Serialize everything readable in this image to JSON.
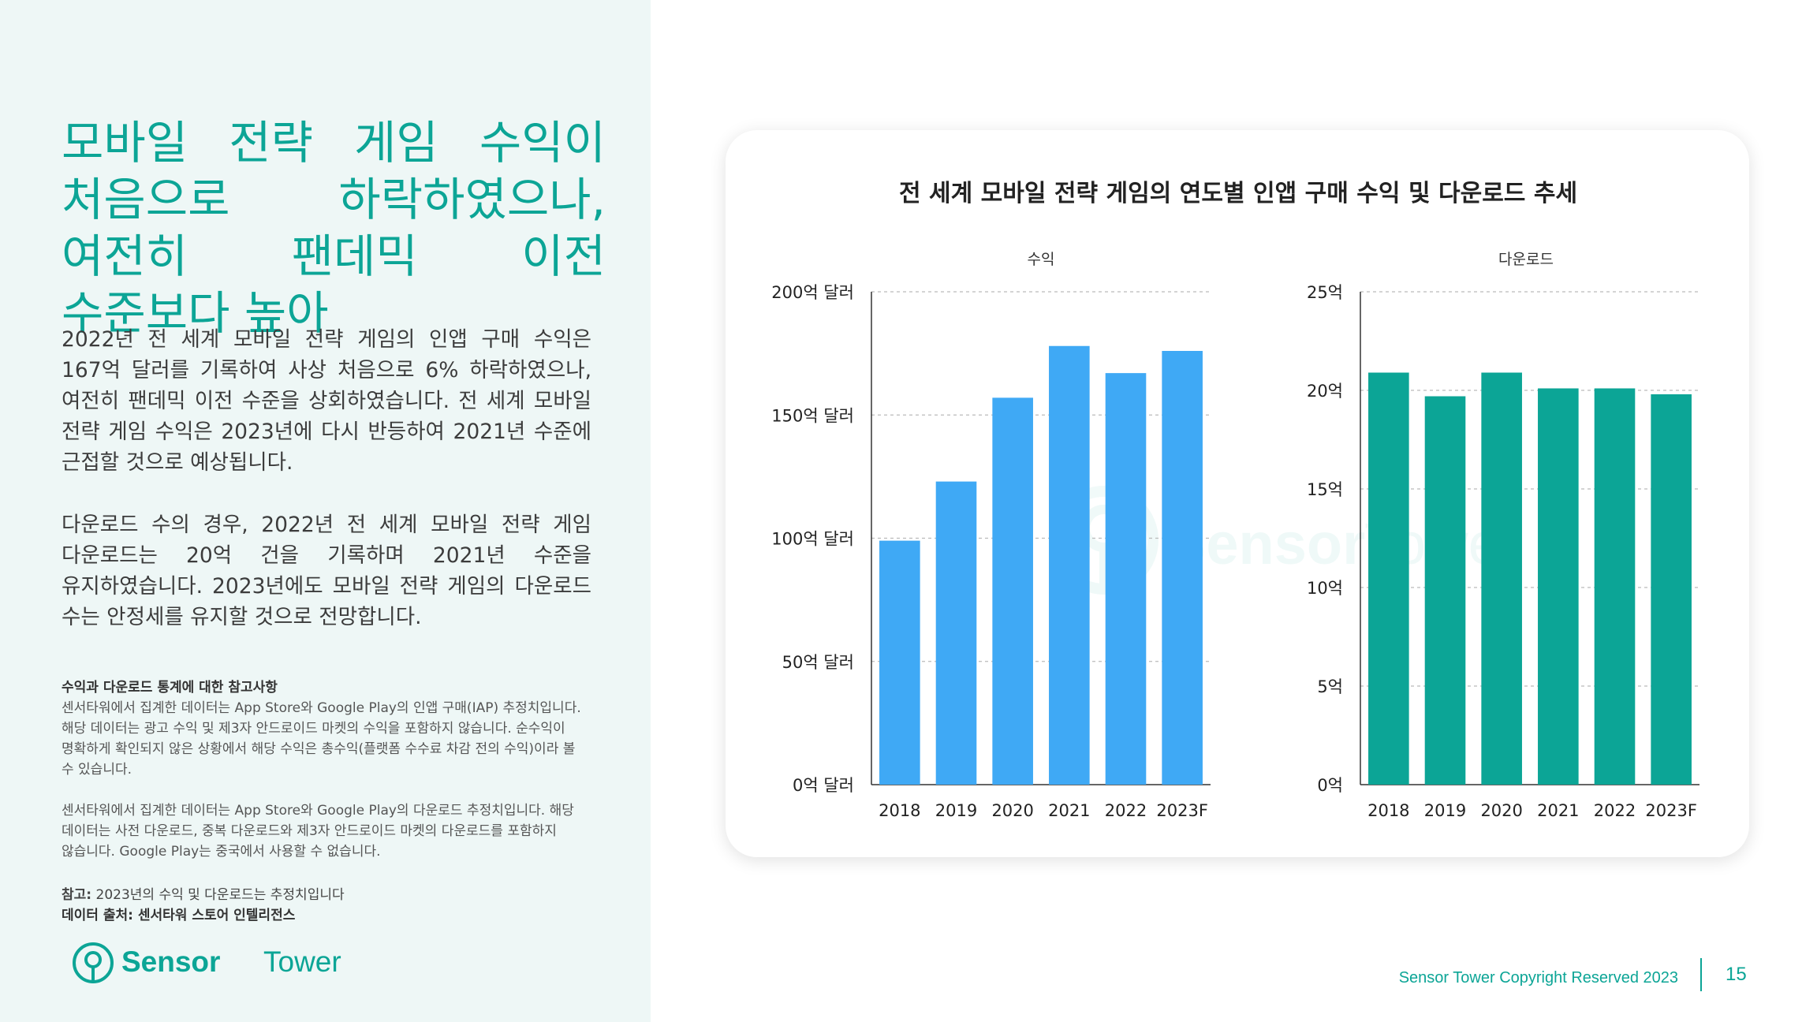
{
  "left": {
    "headline": "모바일 전략 게임 수익이 처음으로 하락하였으나, 여전히 팬데믹 이전 수준보다 높아",
    "para1": "2022년 전 세계 모바일 전략 게임의 인앱 구매 수익은 167억 달러를 기록하여 사상 처음으로 6% 하락하였으나, 여전히 팬데믹 이전 수준을 상회하였습니다. 전 세계 모바일 전략 게임 수익은 2023년에 다시 반등하여 2021년 수준에 근접할 것으로 예상됩니다.",
    "para2": "다운로드 수의 경우, 2022년 전 세계 모바일 전략 게임 다운로드는 20억 건을 기록하며 2021년 수준을 유지하였습니다. 2023년에도 모바일 전략 게임의 다운로드 수는 안정세를 유지할 것으로 전망합니다.",
    "note_heading": "수익과 다운로드 통계에 대한 참고사항",
    "note1": "센서타워에서 집계한 데이터는 App Store와 Google Play의 인앱 구매(IAP) 추정치입니다. 해당 데이터는 광고 수익 및 제3자 안드로이드 마켓의 수익을 포함하지 않습니다. 순수익이 명확하게 확인되지 않은 상황에서 해당 수익은 총수익(플랫폼 수수료 차감 전의 수익)이라 볼 수 있습니다.",
    "note2": "센서타워에서 집계한 데이터는 App Store와 Google Play의 다운로드 추정치입니다. 해당 데이터는 사전 다운로드, 중복 다운로드와 제3자 안드로이드 마켓의 다운로드를 포함하지 않습니다. Google Play는 중국에서 사용할 수 없습니다.",
    "ref_label": "참고:",
    "ref_text": " 2023년의 수익 및 다운로드는 추정치입니다",
    "source": "데이터 출처: 센서타워 스토어 인텔리전스"
  },
  "brand": {
    "name_part1": "Sensor",
    "name_part2": "Tower",
    "icon": "sensor-tower-logo-icon",
    "color": "#0ca596"
  },
  "footer": {
    "copyright": "Sensor Tower Copyright Reserved 2023",
    "page": "15"
  },
  "colors": {
    "accent": "#0ca596",
    "revenue_bar": "#3fa9f5",
    "download_bar": "#0ca596"
  },
  "chart_data": {
    "title": "전 세계 모바일 전략 게임의 연도별 인앱 구매 수익 및 다운로드 추세",
    "charts": [
      {
        "type": "bar",
        "subtitle": "수익",
        "categories": [
          "2018",
          "2019",
          "2020",
          "2021",
          "2022",
          "2023F"
        ],
        "values": [
          99,
          123,
          157,
          178,
          167,
          176
        ],
        "unit": "억 달러",
        "ylim": [
          0,
          200
        ],
        "yticks": [
          0,
          50,
          100,
          150,
          200
        ],
        "ytick_labels": [
          "0억 달러",
          "50억 달러",
          "100억 달러",
          "150억 달러",
          "200억 달러"
        ],
        "color": "#3fa9f5",
        "grid": "dashed-horizontal"
      },
      {
        "type": "bar",
        "subtitle": "다운로드",
        "categories": [
          "2018",
          "2019",
          "2020",
          "2021",
          "2022",
          "2023F"
        ],
        "values": [
          20.9,
          19.7,
          20.9,
          20.1,
          20.1,
          19.8
        ],
        "unit": "억",
        "ylim": [
          0,
          25
        ],
        "yticks": [
          0,
          5,
          10,
          15,
          20,
          25
        ],
        "ytick_labels": [
          "0억",
          "5억",
          "10억",
          "15억",
          "20억",
          "25억"
        ],
        "color": "#0ca596",
        "grid": "dashed-horizontal"
      }
    ]
  }
}
